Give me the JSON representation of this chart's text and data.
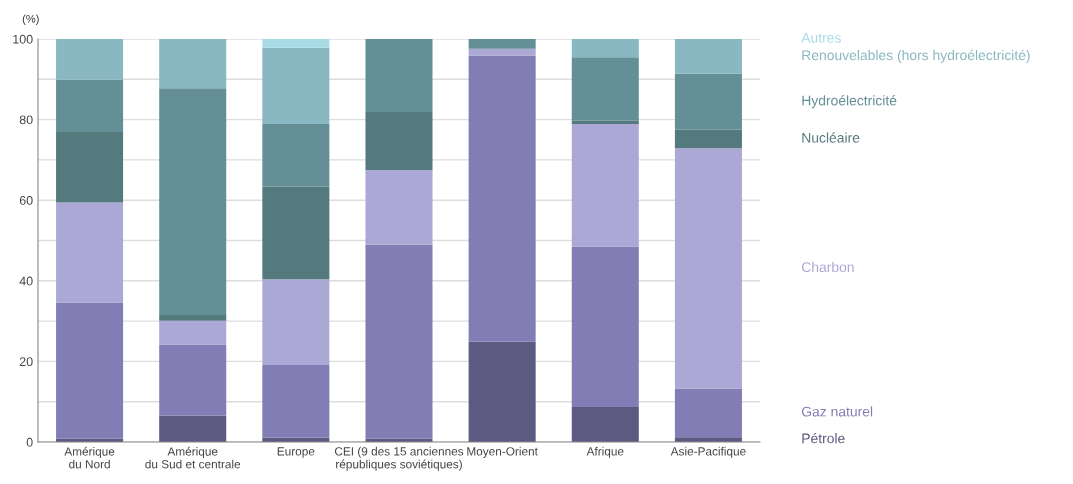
{
  "chart_data": {
    "type": "bar",
    "stacked": true,
    "ylabel": "(%)",
    "categories": [
      "Amérique\ndu Nord",
      "Amérique\ndu Sud et centrale",
      "Europe",
      "CEI (9 des 15 anciennes\nrépubliques soviétiques)",
      "Moyen-Orient",
      "Afrique",
      "Asie-Pacifique"
    ],
    "series": [
      {
        "name": "Pétrole",
        "color": "#5c5a80",
        "values": [
          0.8,
          6.6,
          1.1,
          0.8,
          24.9,
          8.7,
          1.2
        ]
      },
      {
        "name": "Gaz naturel",
        "color": "#837db5",
        "values": [
          33.8,
          17.6,
          18.0,
          48.2,
          71.0,
          39.8,
          12.1
        ]
      },
      {
        "name": "Charbon",
        "color": "#aca8d6",
        "values": [
          24.8,
          5.9,
          21.3,
          18.5,
          1.7,
          30.4,
          59.6
        ]
      },
      {
        "name": "Nucléaire",
        "color": "#557a7e",
        "values": [
          17.5,
          1.4,
          23.0,
          14.4,
          0,
          0.8,
          4.6
        ]
      },
      {
        "name": "Hydroélectricité",
        "color": "#658f96",
        "values": [
          13.0,
          56.3,
          15.5,
          18.1,
          2.4,
          15.8,
          13.9
        ]
      },
      {
        "name": "Renouvelables (hors hydroélectricité)",
        "color": "#89b7c2",
        "values": [
          10.1,
          12.2,
          18.9,
          0,
          0,
          4.5,
          8.6
        ]
      },
      {
        "name": "Autres",
        "color": "#a8dbe5",
        "values": [
          0,
          0,
          2.2,
          0,
          0,
          0,
          0
        ]
      }
    ],
    "ylim": [
      0,
      100
    ],
    "yticks": [
      0,
      {
        "value": 10,
        "label": null
      },
      20,
      {
        "value": 30,
        "label": null
      },
      40,
      {
        "value": 50,
        "label": null
      },
      60,
      {
        "value": 70,
        "label": null
      },
      80,
      {
        "value": 90,
        "label": null
      },
      100
    ],
    "grid": "y",
    "legend": "right"
  }
}
